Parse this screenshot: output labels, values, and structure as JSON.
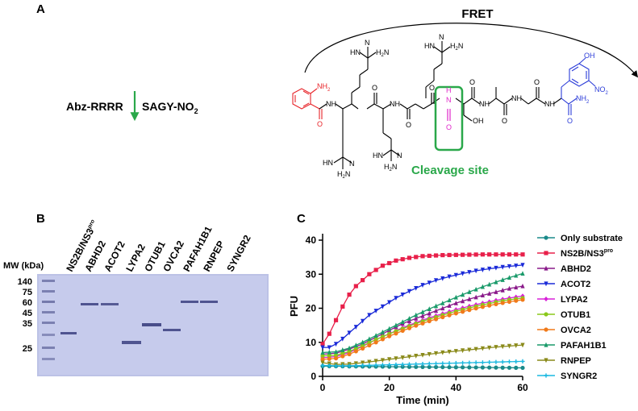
{
  "panel_a": {
    "label": "A",
    "fret_label": "FRET",
    "peptide_left": "Abz-RRRR",
    "peptide_right": "SAGY-NO",
    "peptide_sub": "2",
    "cleavage_label": "Cleavage site",
    "atoms": {
      "nh2": "NH",
      "nh2_sub": "2",
      "nh": "NH",
      "hn": "HN",
      "h2n": "H",
      "h2n_tail": "N",
      "n": "N",
      "h": "H",
      "o": "O",
      "oh": "OH",
      "no2": "NO",
      "no2_sub": "2",
      "cleave_n": "N",
      "cleave_o": "O"
    },
    "colors": {
      "abz": "#e8252a",
      "cleave": "#e026c9",
      "box": "#2aa84a",
      "tyr": "#2b3cd8"
    }
  },
  "panel_b": {
    "label": "B",
    "mw_label": "MW (kDa)",
    "markers": [
      "140",
      "75",
      "60",
      "45",
      "35",
      "25"
    ],
    "lanes": [
      {
        "name": "NS2B/NS3",
        "sup": "pro"
      },
      {
        "name": "ABHD2",
        "sup": ""
      },
      {
        "name": "ACOT2",
        "sup": ""
      },
      {
        "name": "LYPA2",
        "sup": ""
      },
      {
        "name": "OTUB1",
        "sup": ""
      },
      {
        "name": "OVCA2",
        "sup": ""
      },
      {
        "name": "PAFAH1B1",
        "sup": ""
      },
      {
        "name": "RNPEP",
        "sup": ""
      },
      {
        "name": "SYNGR2",
        "sup": ""
      }
    ]
  },
  "panel_c": {
    "label": "C",
    "chart_data": {
      "type": "line",
      "xlabel": "Time (min)",
      "ylabel": "PFU",
      "xlim": [
        0,
        60
      ],
      "ylim": [
        0,
        40
      ],
      "xticks": [
        0,
        20,
        40,
        60
      ],
      "yticks": [
        0,
        10,
        20,
        30,
        40
      ],
      "legend_position": "right",
      "series": [
        {
          "name": "Only substrate",
          "color": "#1a8a8a",
          "marker": "circle",
          "x": [
            0,
            60
          ],
          "y": [
            3.0,
            2.5
          ]
        },
        {
          "name": "NS2B/NS3",
          "sup": "pro",
          "color": "#e8204a",
          "marker": "square",
          "x": [
            0,
            2,
            4,
            6,
            8,
            10,
            14,
            18,
            22,
            26,
            30,
            36,
            42,
            48,
            54,
            60
          ],
          "y": [
            9.5,
            12.5,
            16.5,
            20.5,
            24,
            26.5,
            30,
            32.5,
            34,
            34.8,
            35.3,
            35.6,
            35.7,
            35.8,
            35.8,
            35.8
          ]
        },
        {
          "name": "ABHD2",
          "color": "#8a1a8a",
          "marker": "triangle",
          "x": [
            0,
            4,
            8,
            12,
            16,
            20,
            24,
            28,
            32,
            36,
            40,
            44,
            48,
            52,
            56,
            60
          ],
          "y": [
            6.5,
            6.8,
            8,
            9.5,
            11.5,
            13.5,
            15.5,
            17,
            18.5,
            20,
            21.5,
            22.7,
            23.8,
            24.8,
            25.8,
            26.5
          ]
        },
        {
          "name": "ACOT2",
          "color": "#1a2ad8",
          "marker": "triangle-down",
          "x": [
            0,
            2,
            4,
            6,
            8,
            10,
            14,
            18,
            22,
            26,
            30,
            34,
            38,
            42,
            46,
            50,
            54,
            58,
            60
          ],
          "y": [
            8.5,
            8.5,
            9.5,
            11,
            12.8,
            14.5,
            18,
            20.5,
            23,
            25,
            26.8,
            28.2,
            29.3,
            30.2,
            31,
            31.6,
            32.1,
            32.5,
            32.7
          ]
        },
        {
          "name": "LYPA2",
          "color": "#d820d8",
          "marker": "diamond",
          "x": [
            0,
            4,
            8,
            12,
            16,
            20,
            24,
            28,
            32,
            36,
            40,
            44,
            48,
            52,
            56,
            60
          ],
          "y": [
            5.5,
            5.8,
            7,
            8.8,
            10.8,
            12.5,
            14.3,
            15.8,
            17.2,
            18.4,
            19.6,
            20.6,
            21.5,
            22.3,
            23,
            23.6
          ]
        },
        {
          "name": "OTUB1",
          "color": "#8ac81a",
          "marker": "circle",
          "x": [
            0,
            4,
            8,
            12,
            16,
            20,
            24,
            28,
            32,
            36,
            40,
            44,
            48,
            52,
            56,
            60
          ],
          "y": [
            6,
            6.2,
            7.3,
            9,
            10.8,
            12.5,
            14,
            15.5,
            16.8,
            18,
            19.1,
            20.1,
            21,
            21.8,
            22.5,
            23
          ]
        },
        {
          "name": "OVCA2",
          "color": "#f07a1a",
          "marker": "circle",
          "x": [
            0,
            4,
            8,
            12,
            16,
            20,
            24,
            28,
            32,
            36,
            40,
            44,
            48,
            52,
            56,
            60
          ],
          "y": [
            5,
            5.3,
            6.5,
            8.2,
            10,
            11.8,
            13.4,
            14.9,
            16.2,
            17.4,
            18.5,
            19.5,
            20.4,
            21.2,
            21.9,
            22.5
          ]
        },
        {
          "name": "PAFAH1B1",
          "color": "#1a9a6a",
          "marker": "triangle",
          "x": [
            0,
            4,
            8,
            12,
            16,
            20,
            24,
            28,
            32,
            36,
            40,
            44,
            48,
            52,
            56,
            60
          ],
          "y": [
            7,
            7.2,
            8.3,
            10,
            12,
            14,
            16,
            18,
            19.8,
            21.5,
            23.2,
            24.8,
            26.3,
            27.7,
            29,
            30.2
          ]
        },
        {
          "name": "RNPEP",
          "color": "#8a8a1a",
          "marker": "triangle-down",
          "x": [
            0,
            4,
            8,
            12,
            16,
            20,
            24,
            28,
            32,
            36,
            40,
            44,
            48,
            52,
            56,
            60
          ],
          "y": [
            4,
            3.5,
            3.6,
            4,
            4.5,
            5,
            5.5,
            6,
            6.5,
            7,
            7.4,
            7.8,
            8.2,
            8.6,
            8.9,
            9.2
          ]
        },
        {
          "name": "SYNGR2",
          "color": "#1ab8e0",
          "marker": "plus",
          "x": [
            0,
            4,
            8,
            12,
            16,
            20,
            24,
            28,
            32,
            36,
            40,
            44,
            48,
            52,
            56,
            60
          ],
          "y": [
            3.2,
            3.1,
            3.1,
            3.2,
            3.3,
            3.4,
            3.5,
            3.6,
            3.7,
            3.8,
            3.9,
            4.0,
            4.1,
            4.2,
            4.3,
            4.4
          ]
        }
      ]
    }
  }
}
